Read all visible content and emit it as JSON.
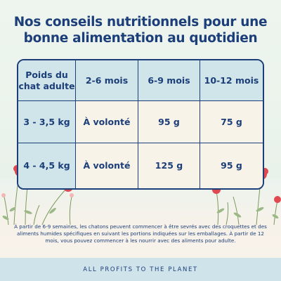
{
  "title_line1": "Nos conseils nutritionnels pour une",
  "title_line2": "bonne alimentation au quotidien",
  "table": {
    "headers": [
      "Poids du chat adulte",
      "2-6 mois",
      "6-9 mois",
      "10-12 mois"
    ],
    "rows": [
      [
        "3 - 3,5 kg",
        "À volonté",
        "95 g",
        "75 g"
      ],
      [
        "4 - 4,5 kg",
        "À volonté",
        "125 g",
        "95 g"
      ]
    ]
  },
  "note": "À partir de 6-9 semaines, les chatons peuvent commencer à être sevrés avec des croquettes et des aliments humides spécifiques en suivant les portions indiquées sur les emballages. À partir de 12 mois, vous pouvez commencer à les nourrir avec des aliments pour adulte.",
  "footer": "ALL PROFITS TO THE PLANET",
  "colors": {
    "navy": "#1c3e79",
    "header_blue": "#cfe5ea",
    "cream": "#f8f3e8",
    "poppy_red": "#e0494f"
  },
  "decor": [
    "poppy-flowers-left",
    "poppy-flowers-right",
    "wild-grass"
  ]
}
